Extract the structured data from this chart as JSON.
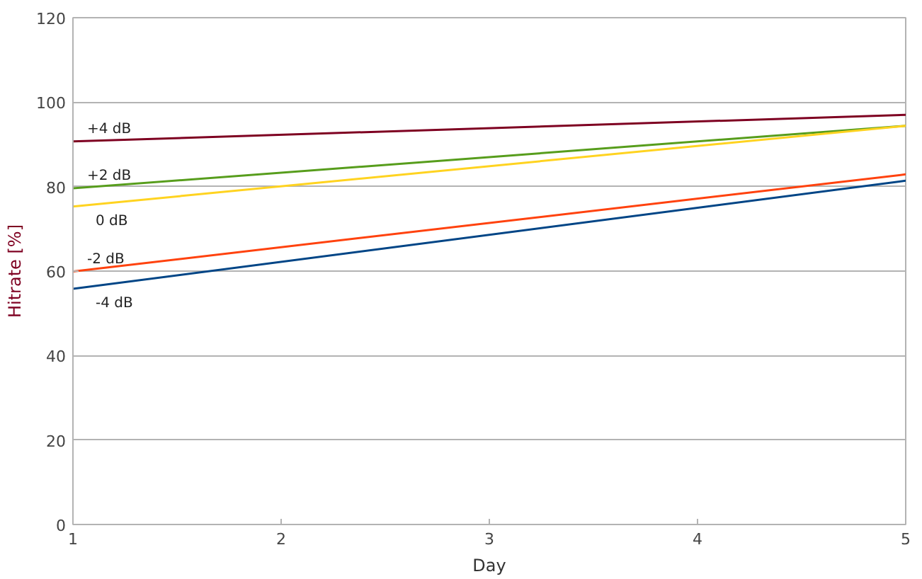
{
  "chart_data": {
    "type": "line",
    "xlabel": "Day",
    "ylabel": "Hitrate [%]",
    "x": [
      1,
      5
    ],
    "xlim": [
      1,
      5
    ],
    "xticks": [
      1,
      2,
      3,
      4,
      5
    ],
    "ylim": [
      0,
      120
    ],
    "yticks": [
      0,
      20,
      40,
      60,
      80,
      100,
      120
    ],
    "grid": "y",
    "legend": false,
    "marker": "none",
    "line_style": "solid",
    "series": [
      {
        "name": "+4 dB",
        "color": "#7e0021",
        "values": [
          90.7,
          97.0
        ]
      },
      {
        "name": "+2 dB",
        "color": "#579d1c",
        "values": [
          79.6,
          94.4
        ]
      },
      {
        "name": "0 dB",
        "color": "#ffd320",
        "values": [
          75.3,
          94.4
        ]
      },
      {
        "name": "-2 dB",
        "color": "#ff420e",
        "values": [
          59.9,
          82.9
        ]
      },
      {
        "name": "-4 dB",
        "color": "#004586",
        "values": [
          55.8,
          81.4
        ]
      }
    ]
  }
}
